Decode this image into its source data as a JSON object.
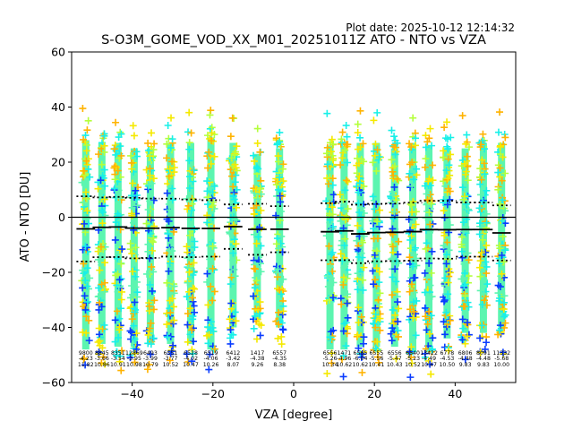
{
  "chart_data": {
    "type": "scatter",
    "title": "S-O3M_GOME_VOD_XX_M01_20251011Z ATO - NTO vs VZA",
    "plot_date": "Plot date: 2025-10-12 12:14:32",
    "xlabel": "VZA [degree]",
    "ylabel": "ATO - NTO [DU]",
    "xlim": [
      -55,
      55
    ],
    "ylim": [
      -60,
      60
    ],
    "xticks": [
      -40,
      -20,
      0,
      20,
      40
    ],
    "yticks": [
      -60,
      -40,
      -20,
      0,
      20,
      40,
      60
    ],
    "zero_line": 0,
    "colors": {
      "scatter_core": "#5cf5b0",
      "scatter_mid": "#18f0e8",
      "scatter_blue": "#0a3cff",
      "scatter_yellow": "#f5e900",
      "scatter_orange": "#ffb300",
      "scatter_lime": "#b4ff3c",
      "mean_line": "#000000",
      "std_line": "#000000"
    },
    "bins": [
      {
        "vza": -51.5,
        "count": "9800",
        "mean": "-4.23",
        "std": "11.82",
        "spread_top": 32,
        "spread_bottom": -52
      },
      {
        "vza": -47.5,
        "count": "8845",
        "mean": "-3.66",
        "std": "10.86",
        "spread_top": 31,
        "spread_bottom": -50
      },
      {
        "vza": -43.5,
        "count": "8351",
        "mean": "-3.54",
        "std": "10.91",
        "spread_top": 31,
        "spread_bottom": -51
      },
      {
        "vza": -39.5,
        "count": "12869",
        "mean": "-3.95",
        "std": "10.98",
        "spread_top": 29,
        "spread_bottom": -51
      },
      {
        "vza": -35.5,
        "count": "6493",
        "mean": "-3.99",
        "std": "10.79",
        "spread_top": 29,
        "spread_bottom": -50
      },
      {
        "vza": -30.5,
        "count": "6551",
        "mean": "-3.77",
        "std": "10.52",
        "spread_top": 31,
        "spread_bottom": -50
      },
      {
        "vza": -25.5,
        "count": "6528",
        "mean": "-4.02",
        "std": "10.47",
        "spread_top": 31,
        "spread_bottom": -50
      },
      {
        "vza": -20.5,
        "count": "6519",
        "mean": "-4.06",
        "std": "10.26",
        "spread_top": 33,
        "spread_bottom": -52
      },
      {
        "vza": -15.0,
        "count": "6412",
        "mean": "-3.42",
        "std": "8.07",
        "spread_top": 31,
        "spread_bottom": -44
      },
      {
        "vza": -9.0,
        "count": "1417",
        "mean": "-4.38",
        "std": "9.26",
        "spread_top": 27,
        "spread_bottom": -41
      },
      {
        "vza": -3.5,
        "count": "6557",
        "mean": "-4.35",
        "std": "8.38",
        "spread_top": 29,
        "spread_bottom": -44
      },
      {
        "vza": 9.0,
        "count": "6556",
        "mean": "-5.26",
        "std": "10.34",
        "spread_top": 30,
        "spread_bottom": -52
      },
      {
        "vza": 12.5,
        "count": "1471",
        "mean": "-4.96",
        "std": "10.62",
        "spread_top": 30,
        "spread_bottom": -52
      },
      {
        "vza": 16.5,
        "count": "6565",
        "mean": "-6.04",
        "std": "10.62",
        "spread_top": 31,
        "spread_bottom": -51
      },
      {
        "vza": 20.5,
        "count": "6555",
        "mean": "-5.56",
        "std": "10.41",
        "spread_top": 31,
        "spread_bottom": -51
      },
      {
        "vza": 25.0,
        "count": "6556",
        "mean": "-5.47",
        "std": "10.43",
        "spread_top": 29,
        "spread_bottom": -51
      },
      {
        "vza": 29.5,
        "count": "6540",
        "mean": "-5.23",
        "std": "10.52",
        "spread_top": 31,
        "spread_bottom": -53
      },
      {
        "vza": 33.5,
        "count": "13422",
        "mean": "-4.49",
        "std": "10.47",
        "spread_top": 30,
        "spread_bottom": -53
      },
      {
        "vza": 38.0,
        "count": "6778",
        "mean": "-4.53",
        "std": "10.50",
        "spread_top": 29,
        "spread_bottom": -48
      },
      {
        "vza": 42.5,
        "count": "6806",
        "mean": "-4.48",
        "std": "9.83",
        "spread_top": 29,
        "spread_bottom": -46
      },
      {
        "vza": 47.0,
        "count": "8091",
        "mean": "-4.48",
        "std": "9.83",
        "spread_top": 31,
        "spread_bottom": -46
      },
      {
        "vza": 51.5,
        "count": "11332",
        "mean": "-5.68",
        "std": "10.00",
        "spread_top": 31,
        "spread_bottom": -44
      }
    ]
  }
}
